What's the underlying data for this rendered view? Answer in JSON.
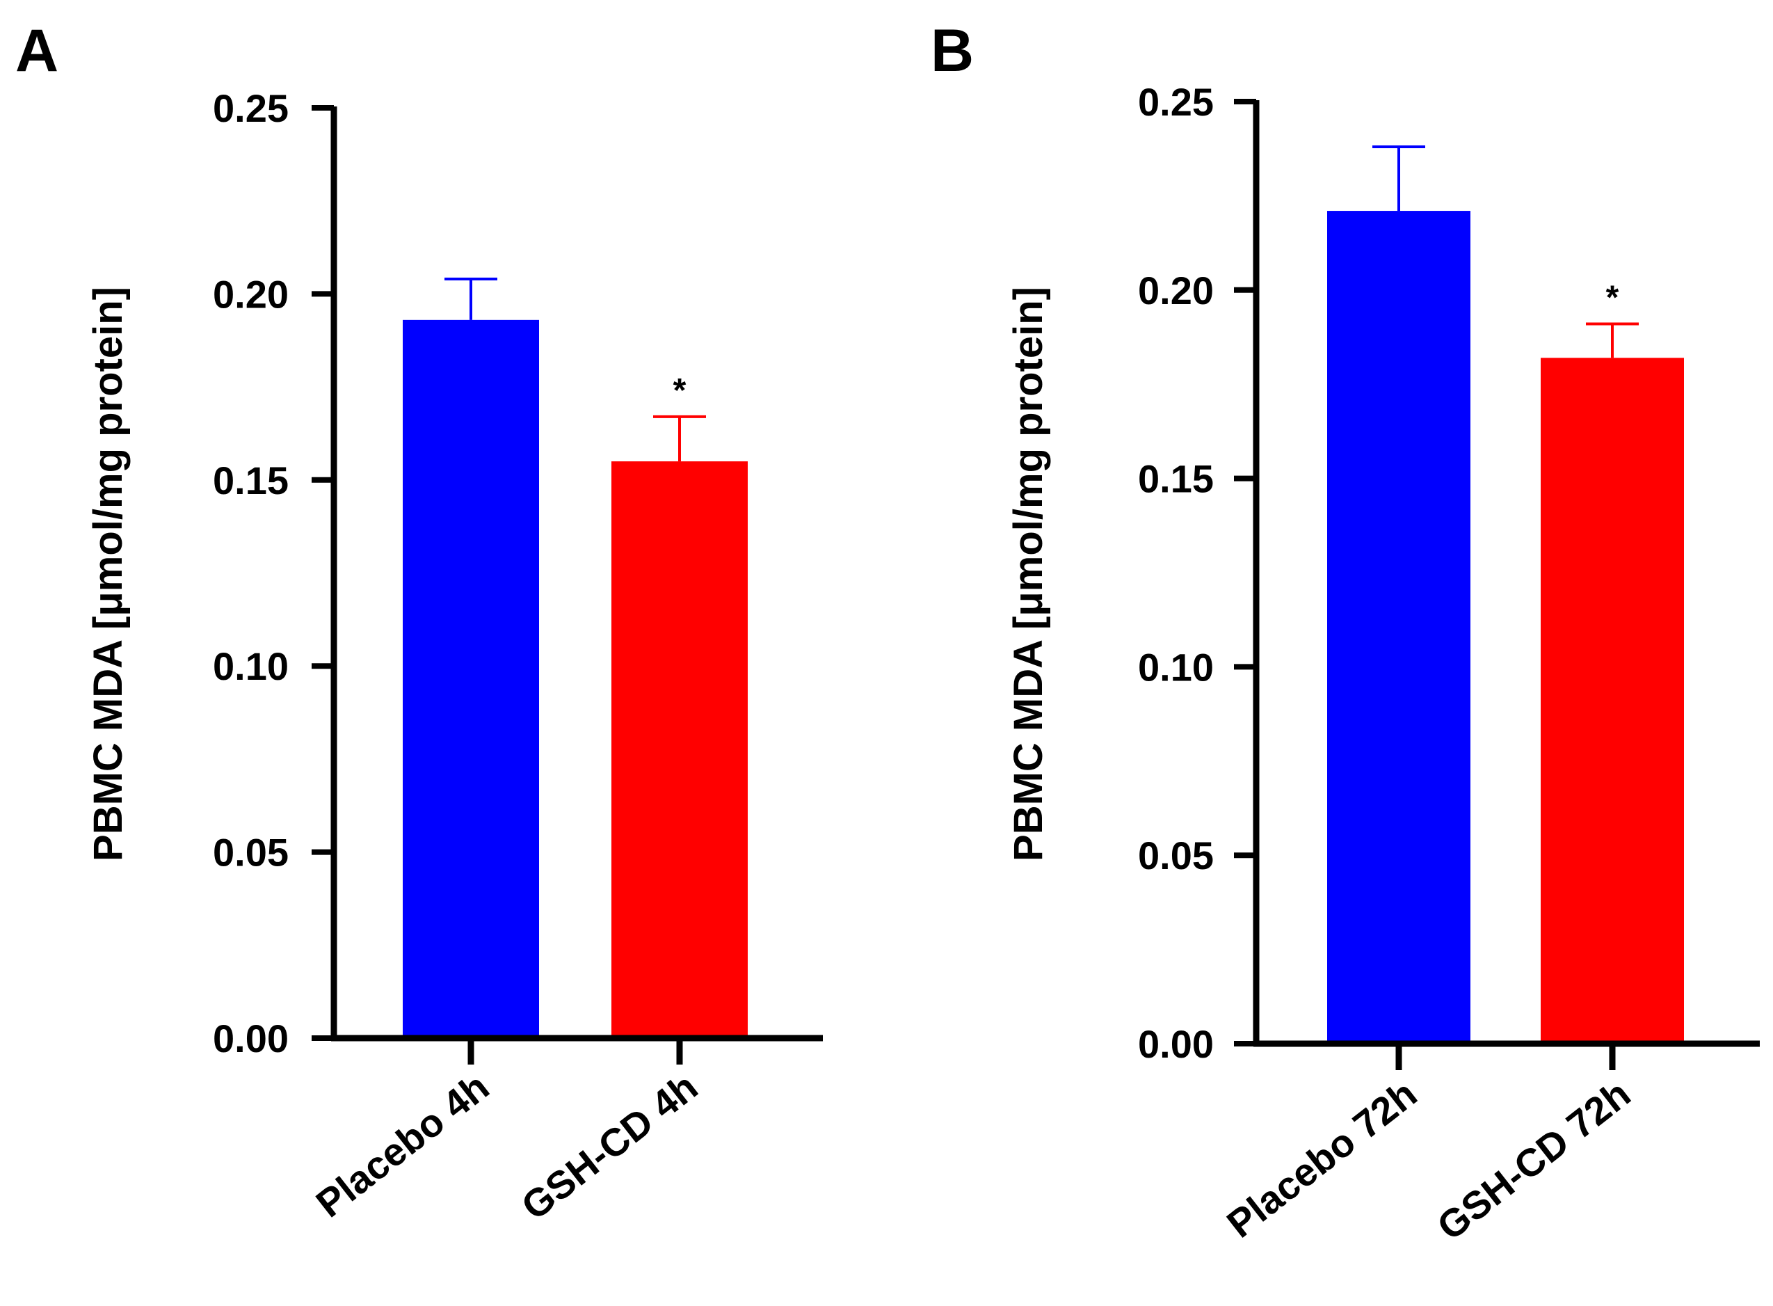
{
  "chart_data": [
    {
      "panel": "A",
      "type": "bar",
      "title": "",
      "xlabel": "",
      "ylabel": "PBMC MDA [μmol/mg protein]",
      "ylim": [
        0,
        0.25
      ],
      "yticks": [
        "0.00",
        "0.05",
        "0.10",
        "0.15",
        "0.20",
        "0.25"
      ],
      "categories": [
        "Placebo 4h",
        "GSH-CD 4h"
      ],
      "values": [
        0.193,
        0.155
      ],
      "errors": [
        0.011,
        0.012
      ],
      "colors": [
        "#0000ff",
        "#ff0000"
      ],
      "significance": [
        "",
        "*"
      ],
      "grid": false
    },
    {
      "panel": "B",
      "type": "bar",
      "title": "",
      "xlabel": "",
      "ylabel": "PBMC MDA [μmol/mg protein]",
      "ylim": [
        0,
        0.25
      ],
      "yticks": [
        "0.00",
        "0.05",
        "0.10",
        "0.15",
        "0.20",
        "0.25"
      ],
      "categories": [
        "Placebo 72h",
        "GSH-CD 72h"
      ],
      "values": [
        0.221,
        0.182
      ],
      "errors": [
        0.017,
        0.009
      ],
      "colors": [
        "#0000ff",
        "#ff0000"
      ],
      "significance": [
        "",
        "*"
      ],
      "grid": false
    }
  ]
}
